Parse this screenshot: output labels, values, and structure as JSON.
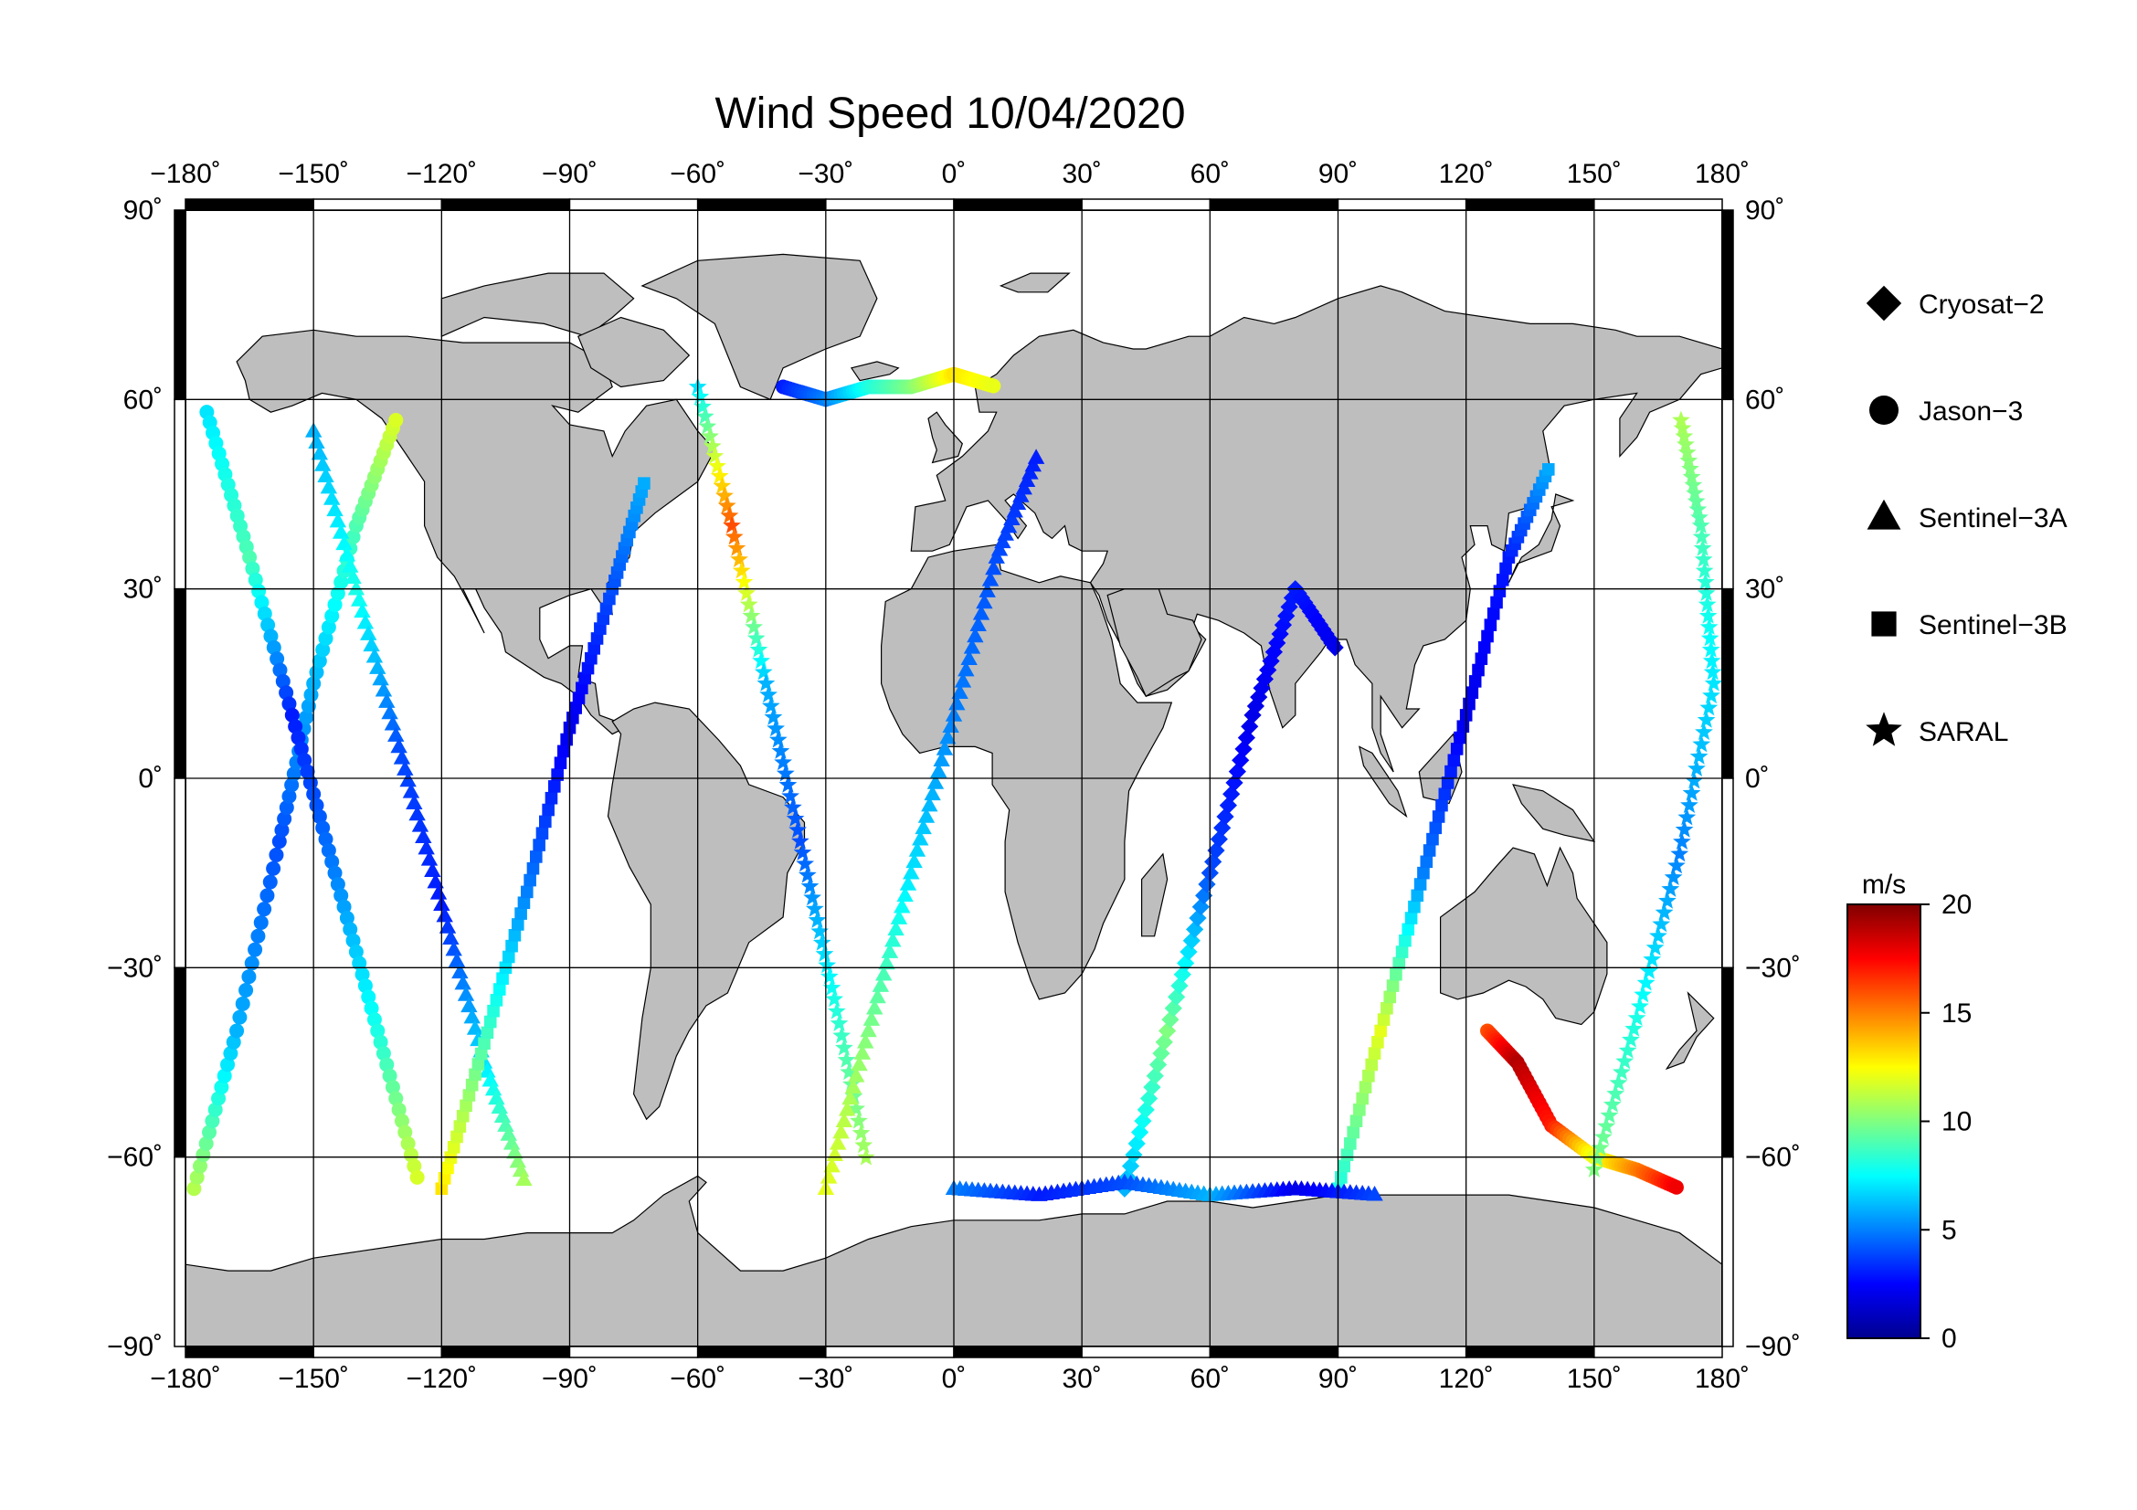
{
  "title": "Wind Speed 10/04/2020",
  "map": {
    "projection": "equirectangular",
    "lon_range": [
      -180,
      180
    ],
    "lat_range": [
      -90,
      90
    ],
    "grid_step_lon": 30,
    "grid_step_lat": 30,
    "land_color": "#bebebe",
    "ocean_color": "#ffffff",
    "gridline_color": "#000000",
    "lon_tick_labels": [
      "−180˚",
      "−150˚",
      "−120˚",
      "−90˚",
      "−60˚",
      "−30˚",
      "0˚",
      "30˚",
      "60˚",
      "90˚",
      "120˚",
      "150˚",
      "180˚"
    ],
    "lat_tick_labels": [
      "90˚",
      "60˚",
      "30˚",
      "0˚",
      "−30˚",
      "−60˚",
      "−90˚"
    ]
  },
  "legend": {
    "items": [
      {
        "label": "Cryosat−2",
        "marker": "diamond-icon"
      },
      {
        "label": "Jason−3",
        "marker": "circle-icon"
      },
      {
        "label": "Sentinel−3A",
        "marker": "triangle-icon"
      },
      {
        "label": "Sentinel−3B",
        "marker": "square-icon"
      },
      {
        "label": "SARAL",
        "marker": "star-icon"
      }
    ]
  },
  "colorbar": {
    "unit": "m/s",
    "min": 0,
    "max": 20,
    "tick_labels": [
      "20",
      "15",
      "10",
      "5",
      "0"
    ],
    "tick_values": [
      20,
      15,
      10,
      5,
      0
    ],
    "colors": [
      "#00008f",
      "#0000ff",
      "#0080ff",
      "#00ffff",
      "#80ff80",
      "#ffff00",
      "#ff8000",
      "#ff0000",
      "#800000"
    ]
  },
  "chart_data": {
    "type": "scatter",
    "xlabel": "",
    "ylabel": "",
    "xlim": [
      -180,
      180
    ],
    "ylim": [
      -90,
      90
    ],
    "color_variable": "wind speed (m/s)",
    "tracks": [
      {
        "satellite": "Jason−3",
        "lon": [
          -178,
          -168,
          -158,
          -150,
          -140,
          -130
        ],
        "lat": [
          -65,
          -40,
          -10,
          15,
          40,
          58
        ],
        "speed": [
          11,
          6,
          4,
          6,
          9,
          12
        ]
      },
      {
        "satellite": "Jason−3",
        "lon": [
          -175,
          -165,
          -155,
          -145,
          -135,
          -125
        ],
        "lat": [
          58,
          35,
          10,
          -15,
          -40,
          -65
        ],
        "speed": [
          7,
          9,
          3,
          5,
          8,
          12
        ]
      },
      {
        "satellite": "Sentinel−3A",
        "lon": [
          -150,
          -140,
          -130,
          -120,
          -110,
          -100
        ],
        "lat": [
          55,
          30,
          5,
          -20,
          -45,
          -65
        ],
        "speed": [
          6,
          8,
          4,
          3,
          7,
          11
        ]
      },
      {
        "satellite": "Sentinel−3B",
        "lon": [
          -120,
          -110,
          -100,
          -90,
          -80,
          -72
        ],
        "lat": [
          -65,
          -42,
          -18,
          8,
          30,
          48
        ],
        "speed": [
          13,
          9,
          5,
          2,
          4,
          6
        ]
      },
      {
        "satellite": "SARAL",
        "lon": [
          -60,
          -52,
          -44,
          -36,
          -28,
          -20
        ],
        "lat": [
          62,
          40,
          15,
          -10,
          -35,
          -62
        ],
        "speed": [
          7,
          16,
          6,
          4,
          8,
          11
        ]
      },
      {
        "satellite": "Jason−3",
        "lon": [
          -40,
          -30,
          -20,
          -10,
          0,
          10
        ],
        "lat": [
          62,
          60,
          62,
          62,
          64,
          62
        ],
        "speed": [
          3,
          5,
          8,
          10,
          13,
          12
        ]
      },
      {
        "satellite": "Sentinel−3A",
        "lon": [
          -30,
          -20,
          -10,
          0,
          10,
          20
        ],
        "lat": [
          -65,
          -40,
          -15,
          10,
          35,
          52
        ],
        "speed": [
          12,
          10,
          7,
          5,
          4,
          3
        ]
      },
      {
        "satellite": "Cryosat−2",
        "lon": [
          40,
          50,
          60,
          70,
          80,
          90
        ],
        "lat": [
          -65,
          -40,
          -15,
          10,
          30,
          20
        ],
        "speed": [
          6,
          10,
          4,
          2,
          3,
          2
        ]
      },
      {
        "satellite": "Sentinel−3B",
        "lon": [
          90,
          100,
          110,
          120,
          130,
          140
        ],
        "lat": [
          -65,
          -40,
          -15,
          10,
          35,
          50
        ],
        "speed": [
          8,
          12,
          5,
          2,
          3,
          6
        ]
      },
      {
        "satellite": "Jason−3",
        "lon": [
          125,
          132,
          140,
          150,
          160,
          170
        ],
        "lat": [
          -40,
          -45,
          -55,
          -60,
          -62,
          -65
        ],
        "speed": [
          16,
          19,
          17,
          12,
          15,
          18
        ]
      },
      {
        "satellite": "SARAL",
        "lon": [
          150,
          160,
          170,
          178,
          175,
          170
        ],
        "lat": [
          -62,
          -38,
          -12,
          15,
          40,
          58
        ],
        "speed": [
          10,
          8,
          5,
          7,
          9,
          11
        ]
      },
      {
        "satellite": "Sentinel−3A",
        "lon": [
          0,
          20,
          40,
          60,
          80,
          100
        ],
        "lat": [
          -65,
          -66,
          -64,
          -66,
          -65,
          -66
        ],
        "speed": [
          5,
          3,
          4,
          6,
          2,
          4
        ]
      }
    ]
  }
}
